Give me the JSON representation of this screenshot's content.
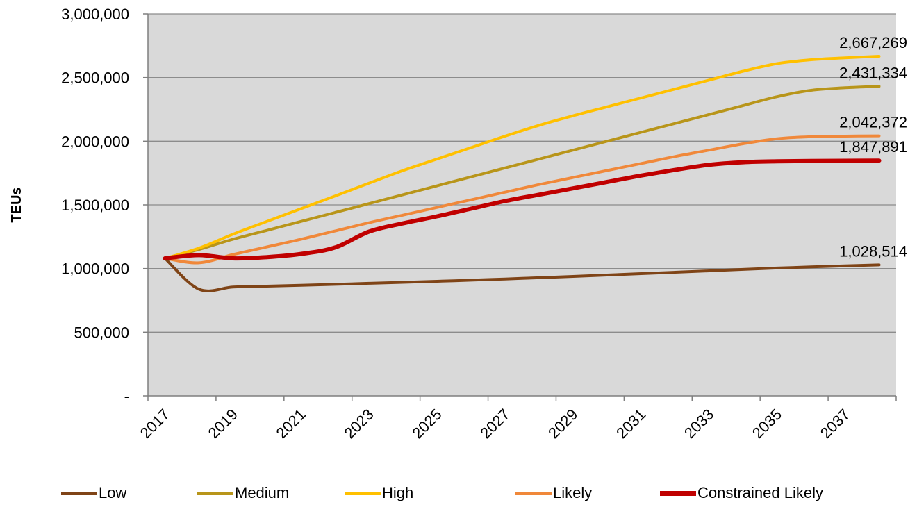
{
  "chart_data": {
    "type": "line",
    "title": "",
    "xlabel": "",
    "ylabel": "TEUs",
    "x": [
      2017,
      2018,
      2019,
      2020,
      2021,
      2022,
      2023,
      2024,
      2025,
      2026,
      2027,
      2028,
      2029,
      2030,
      2031,
      2032,
      2033,
      2034,
      2035,
      2036,
      2037,
      2038
    ],
    "xticks": [
      2017,
      2019,
      2021,
      2023,
      2025,
      2027,
      2029,
      2031,
      2033,
      2035,
      2037
    ],
    "xlim": [
      2016.5,
      2038.5
    ],
    "ylim": [
      0,
      3000000
    ],
    "yticks": [
      {
        "value": 0,
        "label": "-"
      },
      {
        "value": 500000,
        "label": "500,000"
      },
      {
        "value": 1000000,
        "label": "1,000,000"
      },
      {
        "value": 1500000,
        "label": "1,500,000"
      },
      {
        "value": 2000000,
        "label": "2,000,000"
      },
      {
        "value": 2500000,
        "label": "2,500,000"
      },
      {
        "value": 3000000,
        "label": "3,000,000"
      }
    ],
    "grid": "horizontal",
    "legend_position": "bottom",
    "series": [
      {
        "name": "Low",
        "color": "#7f4417",
        "width": 4,
        "values": [
          1080000,
          838000,
          855000,
          862000,
          869000,
          876000,
          884000,
          892000,
          900000,
          909000,
          918000,
          928000,
          938000,
          949000,
          960000,
          971000,
          982000,
          993000,
          1004000,
          1013000,
          1021000,
          1028514
        ],
        "end_label": "1,028,514"
      },
      {
        "name": "Medium",
        "color": "#b8951a",
        "width": 4,
        "values": [
          1080000,
          1150000,
          1230000,
          1300000,
          1370000,
          1440000,
          1510000,
          1580000,
          1650000,
          1720000,
          1790000,
          1860000,
          1930000,
          2000000,
          2070000,
          2140000,
          2210000,
          2280000,
          2350000,
          2400000,
          2420000,
          2431334
        ],
        "end_label": "2,431,334"
      },
      {
        "name": "High",
        "color": "#ffc000",
        "width": 4,
        "values": [
          1080000,
          1160000,
          1270000,
          1370000,
          1470000,
          1570000,
          1670000,
          1770000,
          1860000,
          1950000,
          2040000,
          2125000,
          2200000,
          2270000,
          2340000,
          2410000,
          2480000,
          2550000,
          2610000,
          2640000,
          2655000,
          2667269
        ],
        "end_label": "2,667,269"
      },
      {
        "name": "Likely",
        "color": "#f0883a",
        "width": 4,
        "values": [
          1080000,
          1045000,
          1110000,
          1170000,
          1230000,
          1295000,
          1360000,
          1420000,
          1480000,
          1540000,
          1600000,
          1660000,
          1715000,
          1770000,
          1825000,
          1880000,
          1930000,
          1980000,
          2020000,
          2035000,
          2040000,
          2042372
        ],
        "end_label": "2,042,372"
      },
      {
        "name": "Constrained Likely",
        "color": "#c00000",
        "width": 6,
        "values": [
          1080000,
          1105000,
          1080000,
          1090000,
          1115000,
          1165000,
          1290000,
          1355000,
          1410000,
          1470000,
          1530000,
          1580000,
          1630000,
          1680000,
          1730000,
          1775000,
          1815000,
          1835000,
          1842000,
          1845000,
          1846500,
          1847891
        ],
        "end_label": "1,847,891"
      }
    ]
  }
}
